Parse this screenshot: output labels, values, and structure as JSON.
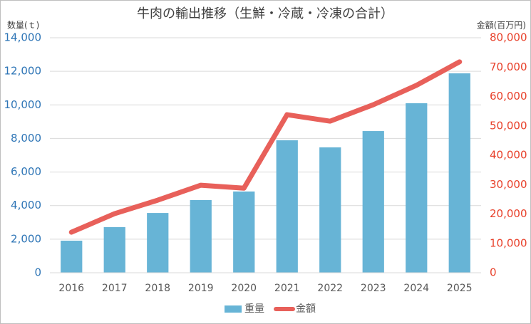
{
  "chart_data": {
    "type": "bar-line",
    "title": "牛肉の輸出推移（生鮮・冷蔵・冷凍の合計）",
    "y_label": "数量(ｔ)",
    "y2_label": "金額(百万円)",
    "categories": [
      "2016",
      "2017",
      "2018",
      "2019",
      "2020",
      "2021",
      "2022",
      "2023",
      "2024",
      "2025"
    ],
    "series": [
      {
        "name": "重量",
        "type": "bar",
        "color": "#67b4d6",
        "values": [
          1910,
          2720,
          3560,
          4330,
          4840,
          7890,
          7470,
          8440,
          10100,
          11880
        ]
      },
      {
        "name": "金額",
        "type": "line",
        "axis": "y2",
        "color": "#e8605a",
        "values": [
          13800,
          20100,
          24700,
          29800,
          28800,
          53800,
          51600,
          57200,
          63800,
          71800
        ]
      }
    ],
    "ylim": [
      0,
      14000
    ],
    "yticks": [
      0,
      {
        "value": 2000,
        "label": "2,000"
      },
      {
        "value": 4000,
        "label": "4,000"
      },
      {
        "value": 6000,
        "label": "6,000"
      },
      {
        "value": 8000,
        "label": "8,000"
      },
      {
        "value": 10000,
        "label": "10,000"
      },
      {
        "value": 12000,
        "label": "12,000"
      },
      {
        "value": 14000,
        "label": "14,000"
      }
    ],
    "y2lim": [
      0,
      80000
    ],
    "y2ticks": [
      0,
      {
        "value": 10000,
        "label": "10,000"
      },
      {
        "value": 20000,
        "label": "20,000"
      },
      {
        "value": 30000,
        "label": "30,000"
      },
      {
        "value": 40000,
        "label": "40,000"
      },
      {
        "value": 50000,
        "label": "50,000"
      },
      {
        "value": 60000,
        "label": "60,000"
      },
      {
        "value": 70000,
        "label": "70,000"
      },
      {
        "value": 80000,
        "label": "80,000"
      }
    ],
    "grid": true,
    "legend": "bottom"
  }
}
